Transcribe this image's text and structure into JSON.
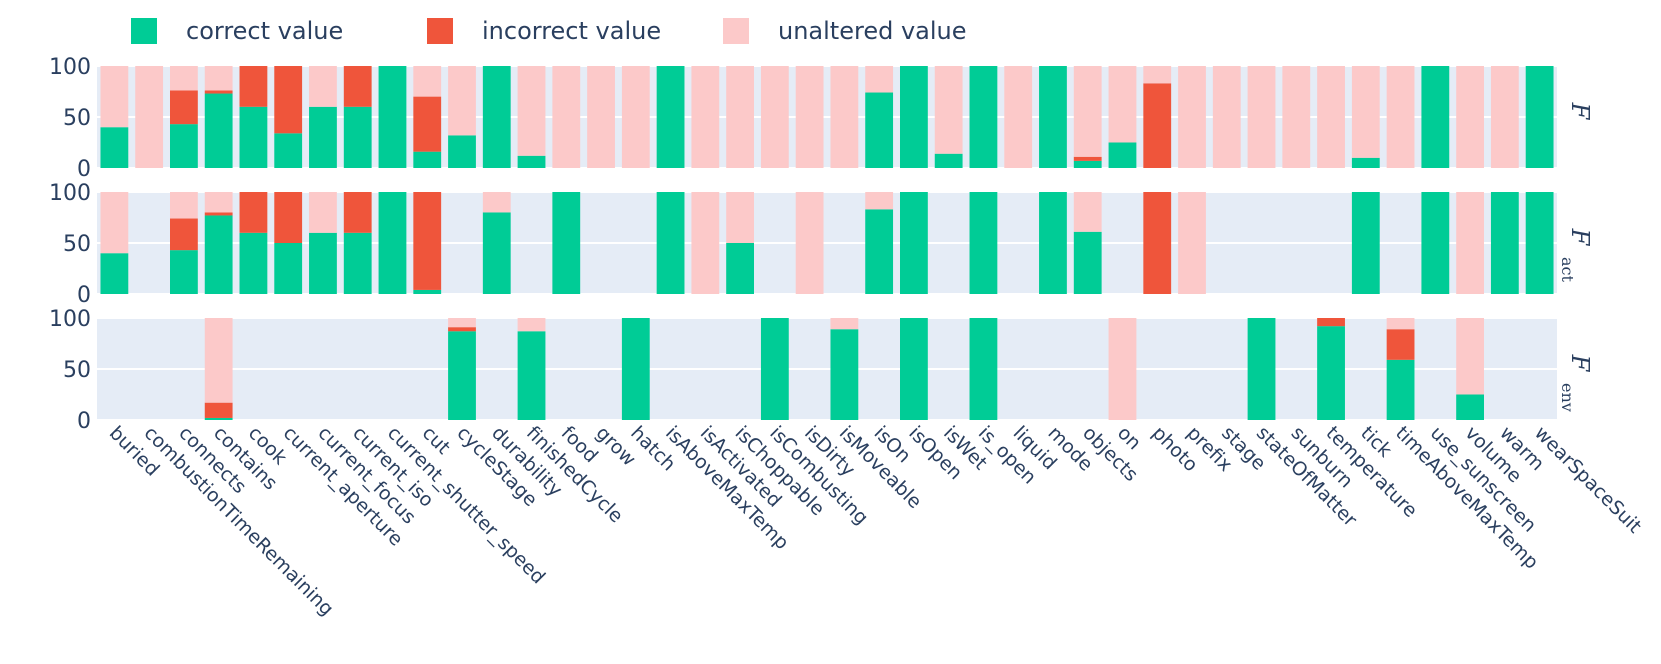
{
  "chart_data": {
    "type": "bar",
    "stacked": true,
    "legend": {
      "placement": "top-left",
      "entries": [
        {
          "name": "correct value",
          "color": "#00cc96"
        },
        {
          "name": "incorrect value",
          "color": "#ef553b"
        },
        {
          "name": "unaltered value",
          "color": "#fcc9c9"
        }
      ]
    },
    "categories": [
      "buried",
      "combustionTimeRemaining",
      "connects",
      "contains",
      "cook",
      "current_aperture",
      "current_focus",
      "current_iso",
      "current_shutter_speed",
      "cut",
      "cycleStage",
      "durability",
      "finishedCycle",
      "food",
      "grow",
      "hatch",
      "isAboveMaxTemp",
      "isActivated",
      "isChoppable",
      "isCombusting",
      "isDirty",
      "isMoveable",
      "isOn",
      "isOpen",
      "isWet",
      "is_open",
      "liquid",
      "mode",
      "objects",
      "on",
      "photo",
      "prefix",
      "stage",
      "stateOfMatter",
      "sunburn",
      "temperature",
      "tick",
      "timeAboveMaxTemp",
      "use_sunscreen",
      "volume",
      "warm",
      "wearSpaceSuit"
    ],
    "yticks": [
      0,
      50,
      100
    ],
    "ylim": [
      0,
      100
    ],
    "grid": true,
    "panels": [
      {
        "label": "F",
        "sub": "",
        "correct": [
          40,
          0,
          43,
          73,
          60,
          34,
          60,
          60,
          100,
          16,
          32,
          100,
          12,
          0,
          0,
          0,
          100,
          0,
          0,
          0,
          0,
          0,
          74,
          100,
          14,
          100,
          0,
          100,
          7,
          25,
          0,
          0,
          0,
          0,
          0,
          0,
          10,
          0,
          100,
          0,
          0,
          100
        ],
        "incorrect": [
          0,
          0,
          33,
          3,
          40,
          66,
          0,
          40,
          0,
          54,
          0,
          0,
          0,
          0,
          0,
          0,
          0,
          0,
          0,
          0,
          0,
          0,
          0,
          0,
          0,
          0,
          0,
          0,
          4,
          0,
          83,
          0,
          0,
          0,
          0,
          0,
          0,
          0,
          0,
          0,
          0,
          0
        ],
        "unaltered": [
          60,
          100,
          24,
          24,
          0,
          0,
          40,
          0,
          0,
          30,
          68,
          0,
          88,
          100,
          100,
          100,
          0,
          100,
          100,
          100,
          100,
          100,
          26,
          0,
          86,
          0,
          100,
          0,
          89,
          75,
          17,
          100,
          100,
          100,
          100,
          100,
          90,
          100,
          0,
          100,
          100,
          0
        ]
      },
      {
        "label": "F",
        "sub": "act",
        "correct": [
          40,
          null,
          43,
          77,
          60,
          50,
          60,
          60,
          100,
          4,
          null,
          80,
          null,
          100,
          null,
          null,
          100,
          0,
          50,
          null,
          0,
          null,
          83,
          100,
          null,
          100,
          null,
          100,
          61,
          null,
          0,
          0,
          null,
          null,
          null,
          null,
          100,
          null,
          100,
          0,
          100,
          100
        ],
        "incorrect": [
          0,
          null,
          31,
          3,
          40,
          50,
          0,
          40,
          0,
          96,
          null,
          0,
          null,
          0,
          null,
          null,
          0,
          0,
          0,
          null,
          0,
          null,
          0,
          0,
          null,
          0,
          null,
          0,
          0,
          null,
          100,
          0,
          null,
          null,
          null,
          null,
          0,
          null,
          0,
          0,
          0,
          0
        ],
        "unaltered": [
          60,
          null,
          26,
          20,
          0,
          0,
          40,
          0,
          0,
          0,
          null,
          20,
          null,
          0,
          null,
          null,
          0,
          100,
          50,
          null,
          100,
          null,
          17,
          0,
          null,
          0,
          null,
          0,
          39,
          null,
          0,
          100,
          null,
          null,
          null,
          null,
          0,
          null,
          0,
          100,
          0,
          0
        ]
      },
      {
        "label": "F",
        "sub": "env",
        "correct": [
          null,
          null,
          null,
          2,
          null,
          null,
          null,
          null,
          null,
          null,
          87,
          null,
          87,
          null,
          null,
          100,
          null,
          null,
          null,
          100,
          null,
          89,
          null,
          100,
          null,
          100,
          null,
          null,
          null,
          0,
          null,
          null,
          null,
          100,
          null,
          92,
          null,
          59,
          null,
          25,
          null,
          null
        ],
        "incorrect": [
          null,
          null,
          null,
          15,
          null,
          null,
          null,
          null,
          null,
          null,
          4,
          null,
          0,
          null,
          null,
          0,
          null,
          null,
          null,
          0,
          null,
          0,
          null,
          0,
          null,
          0,
          null,
          null,
          null,
          0,
          null,
          null,
          null,
          0,
          null,
          8,
          null,
          30,
          null,
          0,
          null,
          null
        ],
        "unaltered": [
          null,
          null,
          null,
          83,
          null,
          null,
          null,
          null,
          null,
          null,
          9,
          null,
          13,
          null,
          null,
          0,
          null,
          null,
          null,
          0,
          null,
          11,
          null,
          0,
          null,
          0,
          null,
          null,
          null,
          100,
          null,
          null,
          null,
          0,
          null,
          0,
          null,
          11,
          null,
          75,
          null,
          null
        ]
      }
    ]
  }
}
